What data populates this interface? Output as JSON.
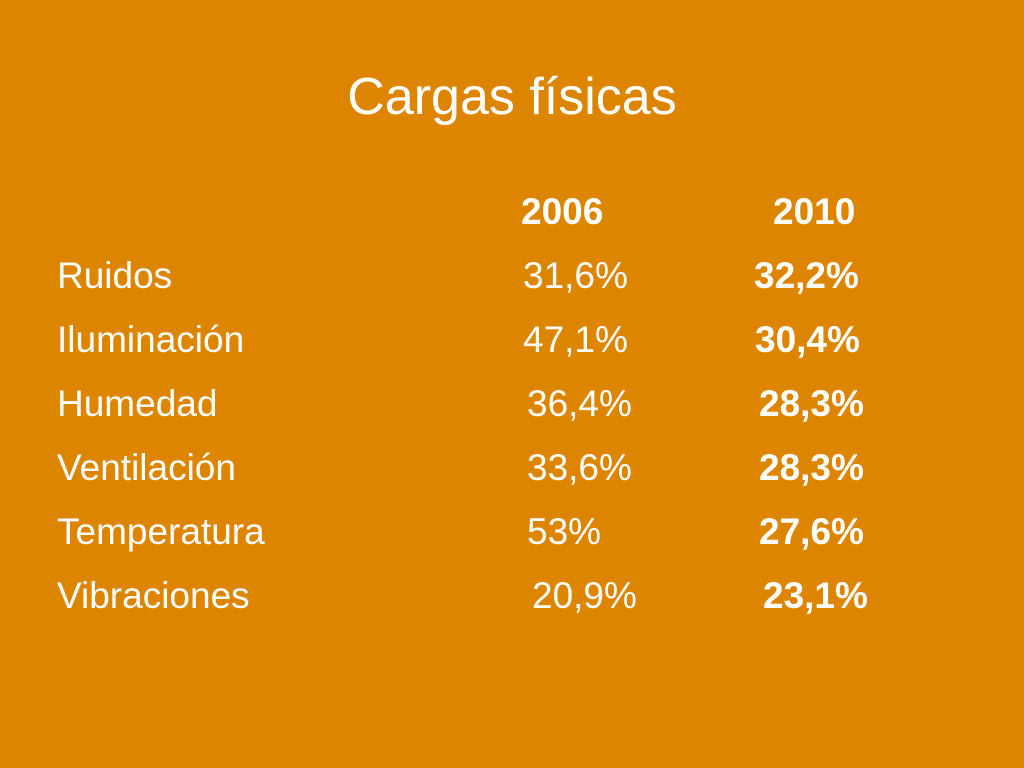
{
  "slide": {
    "title": "Cargas físicas",
    "columns": [
      "2006",
      "2010"
    ],
    "rows": [
      {
        "label": "Ruidos",
        "v2006": "31,6%",
        "v2010": "32,2%"
      },
      {
        "label": "Iluminación",
        "v2006": "47,1%",
        "v2010": "30,4%"
      },
      {
        "label": "Humedad",
        "v2006": "36,4%",
        "v2010": "28,3%"
      },
      {
        "label": "Ventilación",
        "v2006": "33,6%",
        "v2010": "28,3%"
      },
      {
        "label": "Temperatura",
        "v2006": "53%",
        "v2010": "27,6%"
      },
      {
        "label": "Vibraciones",
        "v2006": "20,9%",
        "v2010": "23,1%"
      }
    ]
  },
  "colors": {
    "background": "#DE8500",
    "text": "#FFFFFF"
  }
}
